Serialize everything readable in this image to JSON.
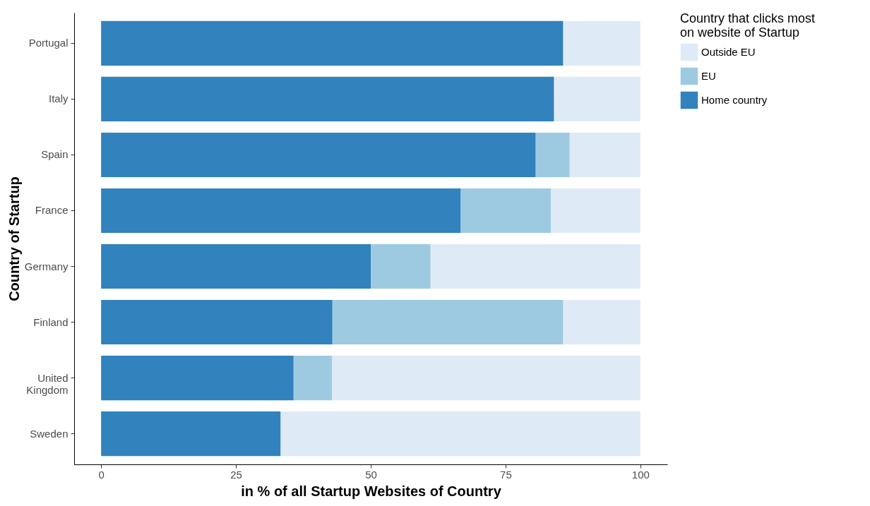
{
  "chart_data": {
    "type": "bar",
    "orientation": "horizontal",
    "stacked": true,
    "xlabel": "in % of all Startup Websites of Country",
    "ylabel": "Country of Startup",
    "legend_title": "Country that clicks most on website of Startup",
    "legend": "right",
    "grid": false,
    "categories": [
      "Portugal",
      "Italy",
      "Spain",
      "France",
      "Germany",
      "Finland",
      "United Kingdom",
      "Sweden"
    ],
    "xlim": [
      -5,
      105
    ],
    "xticks": [
      0,
      25,
      50,
      75,
      100
    ],
    "series": [
      {
        "name": "Home country",
        "color": "#3182bd",
        "values": [
          85.7,
          84.0,
          80.6,
          66.7,
          50.0,
          42.9,
          35.7,
          33.3
        ]
      },
      {
        "name": "EU",
        "color": "#9ecae1",
        "values": [
          0,
          0,
          6.3,
          16.7,
          11.1,
          42.8,
          7.1,
          0
        ]
      },
      {
        "name": "Outside EU",
        "color": "#deebf7",
        "values": [
          14.3,
          16.0,
          13.1,
          16.6,
          38.9,
          14.3,
          57.2,
          66.7
        ]
      }
    ]
  }
}
